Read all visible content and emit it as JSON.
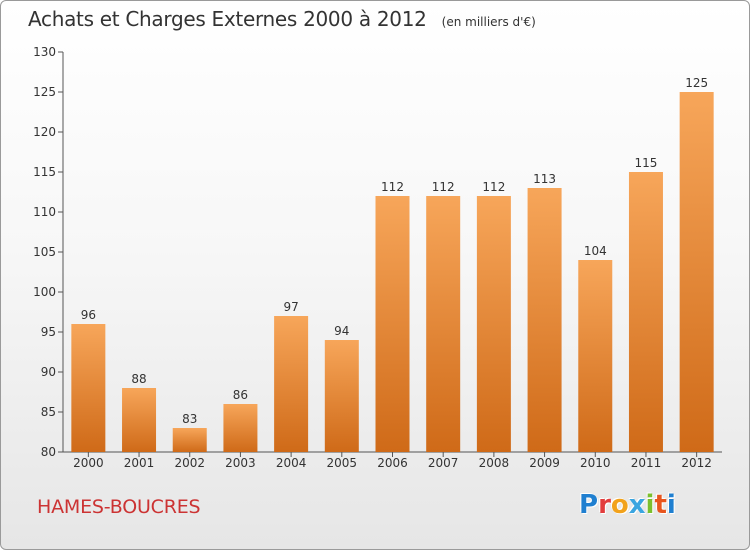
{
  "header": {
    "title": "Achats et Charges Externes 2000 à 2012",
    "subtitle": "(en milliers d'€)"
  },
  "city": "HAMES-BOUCRES",
  "logo": {
    "letters": [
      "P",
      "r",
      "o",
      "x",
      "i",
      "t",
      "i"
    ],
    "colors": [
      "#1f7fd0",
      "#e23c3c",
      "#f2a21b",
      "#3aa5e0",
      "#7cbf2d",
      "#e8551e",
      "#1f7fd0"
    ]
  },
  "chart_data": {
    "type": "bar",
    "title": "Achats et Charges Externes 2000 à 2012",
    "categories": [
      "2000",
      "2001",
      "2002",
      "2003",
      "2004",
      "2005",
      "2006",
      "2007",
      "2008",
      "2009",
      "2010",
      "2011",
      "2012"
    ],
    "values": [
      96,
      88,
      83,
      86,
      97,
      94,
      112,
      112,
      112,
      113,
      104,
      115,
      125
    ],
    "ylim": [
      80,
      130
    ],
    "yticks": [
      80,
      85,
      90,
      95,
      100,
      105,
      110,
      115,
      120,
      125,
      130
    ],
    "grid": false,
    "bar_color_top": "#f7a65a",
    "bar_color_bottom": "#cf6a18",
    "xlabel": "",
    "ylabel": ""
  }
}
